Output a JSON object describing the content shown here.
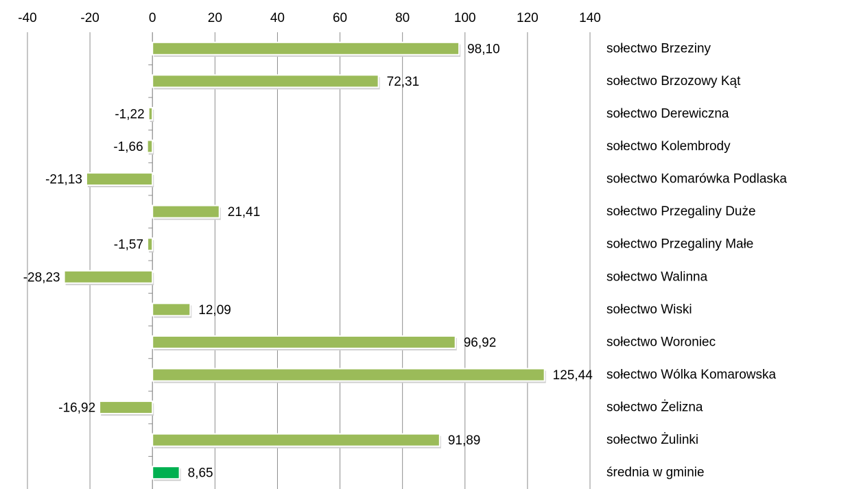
{
  "chart_data": {
    "type": "bar",
    "orientation": "horizontal",
    "xlim": [
      -40,
      140
    ],
    "xticks": [
      -40,
      -20,
      0,
      20,
      40,
      60,
      80,
      100,
      120,
      140
    ],
    "xtick_labels": [
      "-40",
      "-20",
      "0",
      "20",
      "40",
      "60",
      "80",
      "100",
      "120",
      "140"
    ],
    "axis_position": "top",
    "grid": true,
    "categories": [
      "sołectwo Brzeziny",
      "sołectwo Brzozowy Kąt",
      "sołectwo Derewiczna",
      "sołectwo Kolembrody",
      "sołectwo Komarówka Podlaska",
      "sołectwo Przegaliny Duże",
      "sołectwo Przegaliny Małe",
      "sołectwo Walinna",
      "sołectwo Wiski",
      "sołectwo Woroniec",
      "sołectwo Wólka Komarowska",
      "sołectwo Żelizna",
      "sołectwo Żulinki",
      "średnia w gminie"
    ],
    "values": [
      98.1,
      72.31,
      -1.22,
      -1.66,
      -21.13,
      21.41,
      -1.57,
      -28.23,
      12.09,
      96.92,
      125.44,
      -16.92,
      91.89,
      8.65
    ],
    "value_labels": [
      "98,10",
      "72,31",
      "-1,22",
      "-1,66",
      "-21,13",
      "21,41",
      "-1,57",
      "-28,23",
      "12,09",
      "96,92",
      "125,44",
      "-16,92",
      "91,89",
      "8,65"
    ],
    "colors": {
      "bar": "#9bbb59",
      "bar_highlight": "#00b050",
      "gridline": "#8c8c8c"
    },
    "highlight_index": 13
  }
}
